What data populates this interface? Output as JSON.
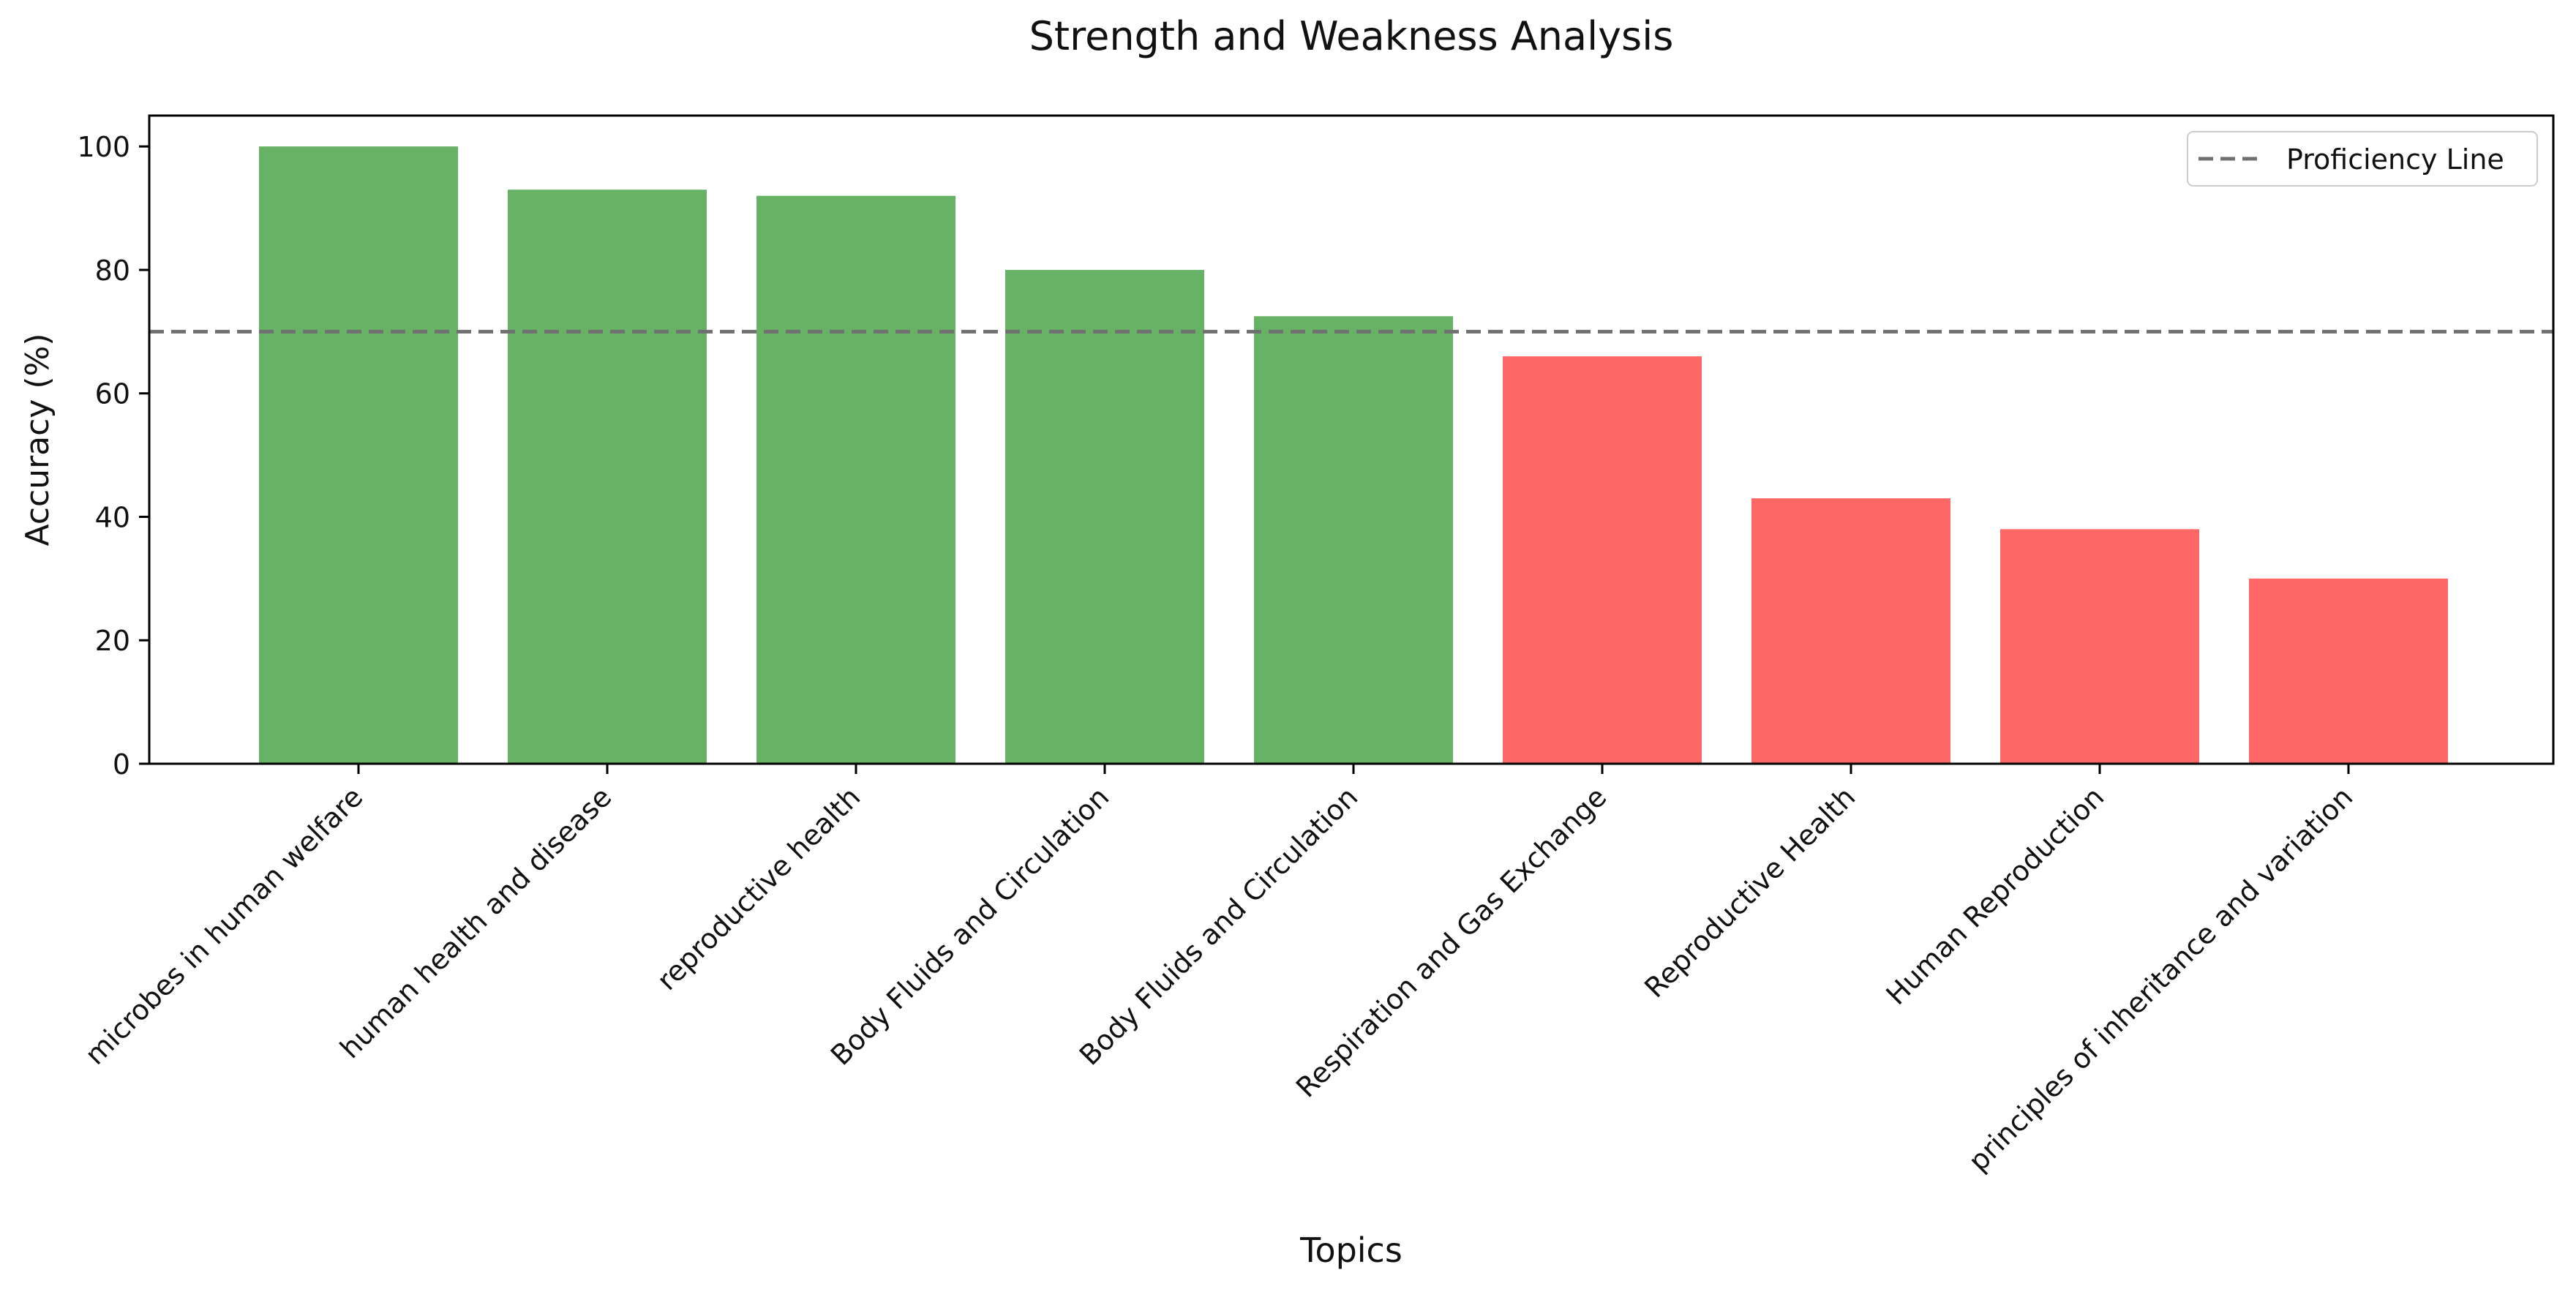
{
  "chart_data": {
    "type": "bar",
    "title": "Strength and Weakness Analysis",
    "xlabel": "Topics",
    "ylabel": "Accuracy (%)",
    "categories": [
      "microbes in human welfare",
      "human health and disease",
      "reproductive health",
      "Body Fluids and Circulation",
      "Body Fluids and Circulation",
      "Respiration and Gas Exchange",
      "Reproductive Health",
      "Human Reproduction",
      "principles of inheritance and variation"
    ],
    "values": [
      100,
      93,
      92,
      80,
      72.5,
      66,
      43,
      38,
      30
    ],
    "ylim": [
      0,
      105
    ],
    "yticks": [
      0,
      20,
      40,
      60,
      80,
      100
    ],
    "proficiency_line": {
      "value": 70,
      "label": "Proficiency Line",
      "color": "#707070"
    },
    "colors": {
      "strength": "#68b266",
      "weakness": "#ff6666"
    },
    "grid": false,
    "legend_position": "top-right"
  }
}
